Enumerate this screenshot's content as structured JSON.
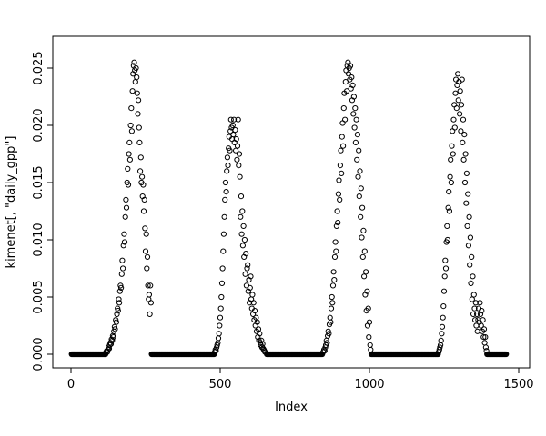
{
  "figure": {
    "background": "#ffffff",
    "foreground": "#000000"
  },
  "chart_data": {
    "type": "scatter",
    "title": "",
    "xlabel": "Index",
    "ylabel": "kimenet[, \"daily_gpp\"]",
    "xlim": [
      0,
      1500
    ],
    "ylim": [
      0,
      0.025
    ],
    "x_ticks": [
      0,
      500,
      1000,
      1500
    ],
    "x_tick_labels": [
      "0",
      "500",
      "1000",
      "1500"
    ],
    "y_ticks": [
      0,
      0.005,
      0.01,
      0.015,
      0.02,
      0.025
    ],
    "y_tick_labels": [
      "0.000",
      "0.005",
      "0.010",
      "0.015",
      "0.020",
      "0.025"
    ],
    "grid": false,
    "legend": "none",
    "marker": "open-circle",
    "marker_color": "#000000",
    "zero_value": 0.0,
    "zero_runs": [
      [
        2,
        116
      ],
      [
        270,
        480
      ],
      [
        656,
        842
      ],
      [
        1006,
        1230
      ],
      [
        1394,
        1458
      ]
    ],
    "points": [
      [
        118,
        0.0002
      ],
      [
        120,
        0.0003
      ],
      [
        122,
        0.0002
      ],
      [
        124,
        0.0004
      ],
      [
        126,
        0.0006
      ],
      [
        128,
        0.0005
      ],
      [
        130,
        0.0008
      ],
      [
        132,
        0.001
      ],
      [
        134,
        0.0009
      ],
      [
        136,
        0.0013
      ],
      [
        138,
        0.0012
      ],
      [
        140,
        0.0016
      ],
      [
        142,
        0.0015
      ],
      [
        144,
        0.002
      ],
      [
        146,
        0.0024
      ],
      [
        148,
        0.0022
      ],
      [
        150,
        0.003
      ],
      [
        152,
        0.0028
      ],
      [
        154,
        0.0035
      ],
      [
        156,
        0.004
      ],
      [
        158,
        0.0038
      ],
      [
        160,
        0.0048
      ],
      [
        162,
        0.0045
      ],
      [
        164,
        0.0055
      ],
      [
        166,
        0.006
      ],
      [
        168,
        0.0058
      ],
      [
        170,
        0.007
      ],
      [
        172,
        0.0082
      ],
      [
        174,
        0.0075
      ],
      [
        176,
        0.0095
      ],
      [
        178,
        0.0105
      ],
      [
        180,
        0.0098
      ],
      [
        182,
        0.012
      ],
      [
        184,
        0.0135
      ],
      [
        186,
        0.0128
      ],
      [
        188,
        0.015
      ],
      [
        190,
        0.0162
      ],
      [
        192,
        0.0148
      ],
      [
        194,
        0.0175
      ],
      [
        196,
        0.0185
      ],
      [
        198,
        0.017
      ],
      [
        200,
        0.02
      ],
      [
        202,
        0.0215
      ],
      [
        204,
        0.0195
      ],
      [
        206,
        0.023
      ],
      [
        208,
        0.0245
      ],
      [
        210,
        0.0252
      ],
      [
        212,
        0.0255
      ],
      [
        214,
        0.0248
      ],
      [
        216,
        0.0238
      ],
      [
        218,
        0.025
      ],
      [
        220,
        0.0242
      ],
      [
        222,
        0.0228
      ],
      [
        224,
        0.021
      ],
      [
        226,
        0.0222
      ],
      [
        228,
        0.0198
      ],
      [
        230,
        0.0185
      ],
      [
        232,
        0.016
      ],
      [
        234,
        0.0172
      ],
      [
        236,
        0.015
      ],
      [
        238,
        0.0155
      ],
      [
        240,
        0.0138
      ],
      [
        242,
        0.0148
      ],
      [
        244,
        0.0125
      ],
      [
        246,
        0.0135
      ],
      [
        248,
        0.011
      ],
      [
        250,
        0.009
      ],
      [
        252,
        0.0105
      ],
      [
        254,
        0.0075
      ],
      [
        256,
        0.0085
      ],
      [
        258,
        0.006
      ],
      [
        260,
        0.0048
      ],
      [
        262,
        0.0052
      ],
      [
        264,
        0.0035
      ],
      [
        266,
        0.006
      ],
      [
        268,
        0.0045
      ],
      [
        482,
        0.0002
      ],
      [
        484,
        0.0004
      ],
      [
        486,
        0.0003
      ],
      [
        488,
        0.0006
      ],
      [
        490,
        0.0008
      ],
      [
        492,
        0.001
      ],
      [
        494,
        0.0014
      ],
      [
        496,
        0.0018
      ],
      [
        498,
        0.0025
      ],
      [
        500,
        0.0032
      ],
      [
        502,
        0.004
      ],
      [
        504,
        0.005
      ],
      [
        506,
        0.0062
      ],
      [
        508,
        0.0075
      ],
      [
        510,
        0.009
      ],
      [
        512,
        0.0105
      ],
      [
        514,
        0.012
      ],
      [
        516,
        0.0135
      ],
      [
        518,
        0.015
      ],
      [
        520,
        0.0142
      ],
      [
        522,
        0.016
      ],
      [
        524,
        0.0172
      ],
      [
        526,
        0.0165
      ],
      [
        528,
        0.018
      ],
      [
        530,
        0.019
      ],
      [
        532,
        0.0178
      ],
      [
        534,
        0.0195
      ],
      [
        536,
        0.0205
      ],
      [
        538,
        0.0198
      ],
      [
        540,
        0.0188
      ],
      [
        542,
        0.02
      ],
      [
        544,
        0.0192
      ],
      [
        546,
        0.0205
      ],
      [
        548,
        0.0185
      ],
      [
        550,
        0.0196
      ],
      [
        552,
        0.0178
      ],
      [
        554,
        0.0188
      ],
      [
        556,
        0.017
      ],
      [
        558,
        0.0182
      ],
      [
        560,
        0.0205
      ],
      [
        562,
        0.0165
      ],
      [
        564,
        0.0175
      ],
      [
        566,
        0.0155
      ],
      [
        568,
        0.012
      ],
      [
        570,
        0.0138
      ],
      [
        572,
        0.0105
      ],
      [
        574,
        0.0125
      ],
      [
        576,
        0.0095
      ],
      [
        578,
        0.0112
      ],
      [
        580,
        0.0085
      ],
      [
        582,
        0.01
      ],
      [
        584,
        0.007
      ],
      [
        586,
        0.0088
      ],
      [
        588,
        0.006
      ],
      [
        590,
        0.0075
      ],
      [
        592,
        0.0078
      ],
      [
        594,
        0.0055
      ],
      [
        596,
        0.0065
      ],
      [
        598,
        0.0045
      ],
      [
        600,
        0.0058
      ],
      [
        602,
        0.0068
      ],
      [
        604,
        0.0048
      ],
      [
        606,
        0.004
      ],
      [
        608,
        0.0052
      ],
      [
        610,
        0.0035
      ],
      [
        612,
        0.0045
      ],
      [
        614,
        0.003
      ],
      [
        616,
        0.0038
      ],
      [
        618,
        0.0025
      ],
      [
        620,
        0.0032
      ],
      [
        622,
        0.002
      ],
      [
        624,
        0.0028
      ],
      [
        626,
        0.0015
      ],
      [
        628,
        0.0022
      ],
      [
        630,
        0.0012
      ],
      [
        632,
        0.0018
      ],
      [
        634,
        0.001
      ],
      [
        636,
        0.0008
      ],
      [
        638,
        0.0012
      ],
      [
        640,
        0.0006
      ],
      [
        642,
        0.0009
      ],
      [
        644,
        0.0005
      ],
      [
        646,
        0.0004
      ],
      [
        648,
        0.0003
      ],
      [
        650,
        0.0002
      ],
      [
        845,
        0.0002
      ],
      [
        848,
        0.0004
      ],
      [
        850,
        0.0003
      ],
      [
        852,
        0.0006
      ],
      [
        854,
        0.0008
      ],
      [
        856,
        0.0012
      ],
      [
        858,
        0.001
      ],
      [
        860,
        0.0016
      ],
      [
        862,
        0.002
      ],
      [
        864,
        0.0018
      ],
      [
        866,
        0.0026
      ],
      [
        868,
        0.0032
      ],
      [
        870,
        0.0028
      ],
      [
        872,
        0.004
      ],
      [
        874,
        0.005
      ],
      [
        876,
        0.0045
      ],
      [
        878,
        0.006
      ],
      [
        880,
        0.0072
      ],
      [
        882,
        0.0065
      ],
      [
        884,
        0.0085
      ],
      [
        886,
        0.0098
      ],
      [
        888,
        0.009
      ],
      [
        890,
        0.0112
      ],
      [
        892,
        0.0125
      ],
      [
        894,
        0.0115
      ],
      [
        896,
        0.014
      ],
      [
        898,
        0.0152
      ],
      [
        900,
        0.0135
      ],
      [
        902,
        0.0165
      ],
      [
        904,
        0.0178
      ],
      [
        906,
        0.0158
      ],
      [
        908,
        0.019
      ],
      [
        910,
        0.0202
      ],
      [
        912,
        0.0182
      ],
      [
        914,
        0.0215
      ],
      [
        916,
        0.0228
      ],
      [
        918,
        0.0205
      ],
      [
        920,
        0.0238
      ],
      [
        922,
        0.0248
      ],
      [
        924,
        0.023
      ],
      [
        926,
        0.0252
      ],
      [
        928,
        0.0255
      ],
      [
        930,
        0.0245
      ],
      [
        932,
        0.025
      ],
      [
        934,
        0.024
      ],
      [
        936,
        0.0252
      ],
      [
        938,
        0.0232
      ],
      [
        940,
        0.0242
      ],
      [
        942,
        0.0222
      ],
      [
        944,
        0.0235
      ],
      [
        946,
        0.021
      ],
      [
        948,
        0.0225
      ],
      [
        950,
        0.0198
      ],
      [
        952,
        0.0215
      ],
      [
        954,
        0.0185
      ],
      [
        956,
        0.0205
      ],
      [
        958,
        0.017
      ],
      [
        960,
        0.0192
      ],
      [
        962,
        0.0155
      ],
      [
        964,
        0.0178
      ],
      [
        966,
        0.0138
      ],
      [
        968,
        0.016
      ],
      [
        970,
        0.012
      ],
      [
        972,
        0.0145
      ],
      [
        974,
        0.0102
      ],
      [
        976,
        0.0128
      ],
      [
        978,
        0.0085
      ],
      [
        980,
        0.0108
      ],
      [
        982,
        0.0068
      ],
      [
        984,
        0.009
      ],
      [
        986,
        0.0052
      ],
      [
        988,
        0.0072
      ],
      [
        990,
        0.0038
      ],
      [
        992,
        0.0055
      ],
      [
        994,
        0.0025
      ],
      [
        996,
        0.004
      ],
      [
        998,
        0.0015
      ],
      [
        1000,
        0.0028
      ],
      [
        1002,
        0.0008
      ],
      [
        1004,
        0.0004
      ],
      [
        1232,
        0.0002
      ],
      [
        1234,
        0.0004
      ],
      [
        1236,
        0.0006
      ],
      [
        1238,
        0.0008
      ],
      [
        1240,
        0.0012
      ],
      [
        1242,
        0.0018
      ],
      [
        1244,
        0.0024
      ],
      [
        1246,
        0.0032
      ],
      [
        1248,
        0.0042
      ],
      [
        1250,
        0.0055
      ],
      [
        1252,
        0.0068
      ],
      [
        1254,
        0.0082
      ],
      [
        1256,
        0.0075
      ],
      [
        1258,
        0.0098
      ],
      [
        1260,
        0.0112
      ],
      [
        1262,
        0.01
      ],
      [
        1264,
        0.0128
      ],
      [
        1266,
        0.0142
      ],
      [
        1268,
        0.0125
      ],
      [
        1270,
        0.0155
      ],
      [
        1272,
        0.017
      ],
      [
        1274,
        0.015
      ],
      [
        1276,
        0.0182
      ],
      [
        1278,
        0.0195
      ],
      [
        1280,
        0.0175
      ],
      [
        1282,
        0.0205
      ],
      [
        1284,
        0.0218
      ],
      [
        1286,
        0.0198
      ],
      [
        1288,
        0.0228
      ],
      [
        1290,
        0.024
      ],
      [
        1292,
        0.0215
      ],
      [
        1294,
        0.0235
      ],
      [
        1296,
        0.0245
      ],
      [
        1298,
        0.0222
      ],
      [
        1300,
        0.0238
      ],
      [
        1302,
        0.021
      ],
      [
        1304,
        0.023
      ],
      [
        1306,
        0.0195
      ],
      [
        1308,
        0.0218
      ],
      [
        1310,
        0.024
      ],
      [
        1312,
        0.0185
      ],
      [
        1314,
        0.0205
      ],
      [
        1316,
        0.017
      ],
      [
        1318,
        0.0192
      ],
      [
        1320,
        0.015
      ],
      [
        1322,
        0.0175
      ],
      [
        1324,
        0.0132
      ],
      [
        1326,
        0.0158
      ],
      [
        1328,
        0.0112
      ],
      [
        1330,
        0.014
      ],
      [
        1332,
        0.0095
      ],
      [
        1334,
        0.012
      ],
      [
        1336,
        0.0078
      ],
      [
        1338,
        0.0102
      ],
      [
        1340,
        0.0062
      ],
      [
        1342,
        0.0085
      ],
      [
        1344,
        0.0048
      ],
      [
        1346,
        0.0068
      ],
      [
        1348,
        0.0035
      ],
      [
        1350,
        0.0052
      ],
      [
        1352,
        0.004
      ],
      [
        1354,
        0.003
      ],
      [
        1356,
        0.0045
      ],
      [
        1358,
        0.0025
      ],
      [
        1360,
        0.0035
      ],
      [
        1362,
        0.002
      ],
      [
        1364,
        0.003
      ],
      [
        1366,
        0.004
      ],
      [
        1368,
        0.0028
      ],
      [
        1370,
        0.0045
      ],
      [
        1372,
        0.0035
      ],
      [
        1374,
        0.0025
      ],
      [
        1376,
        0.0038
      ],
      [
        1378,
        0.002
      ],
      [
        1380,
        0.003
      ],
      [
        1382,
        0.0015
      ],
      [
        1384,
        0.0022
      ],
      [
        1386,
        0.001
      ],
      [
        1388,
        0.0015
      ],
      [
        1390,
        0.0006
      ],
      [
        1392,
        0.0003
      ]
    ]
  }
}
